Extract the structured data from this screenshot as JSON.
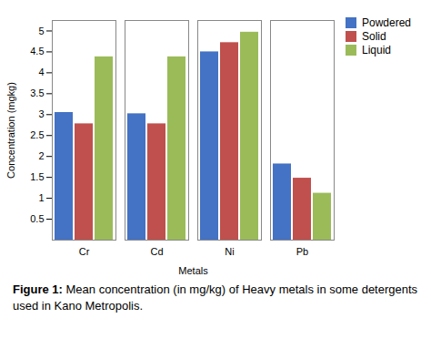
{
  "chart_data": {
    "type": "bar",
    "categories": [
      "Cr",
      "Cd",
      "Ni",
      "Pb"
    ],
    "series": [
      {
        "name": "Powdered",
        "color": "#4472C4",
        "values": [
          3.05,
          3.02,
          4.5,
          1.82
        ]
      },
      {
        "name": "Solid",
        "color": "#C0504D",
        "values": [
          2.78,
          2.78,
          4.72,
          1.48
        ]
      },
      {
        "name": "Liquid",
        "color": "#9BBB59",
        "values": [
          4.38,
          4.38,
          4.97,
          1.12
        ]
      }
    ],
    "xlabel": "Metals",
    "ylabel": "Concentration (mgkg)",
    "ylim": [
      0,
      5.25
    ],
    "yticks": [
      0.5,
      1,
      1.5,
      2,
      2.5,
      3,
      3.5,
      4,
      4.5,
      5
    ],
    "legend": "upper right",
    "caption": "Figure 1: Mean concentration (in mg/kg) of Heavy metals in some detergents used in Kano Metropolis."
  }
}
